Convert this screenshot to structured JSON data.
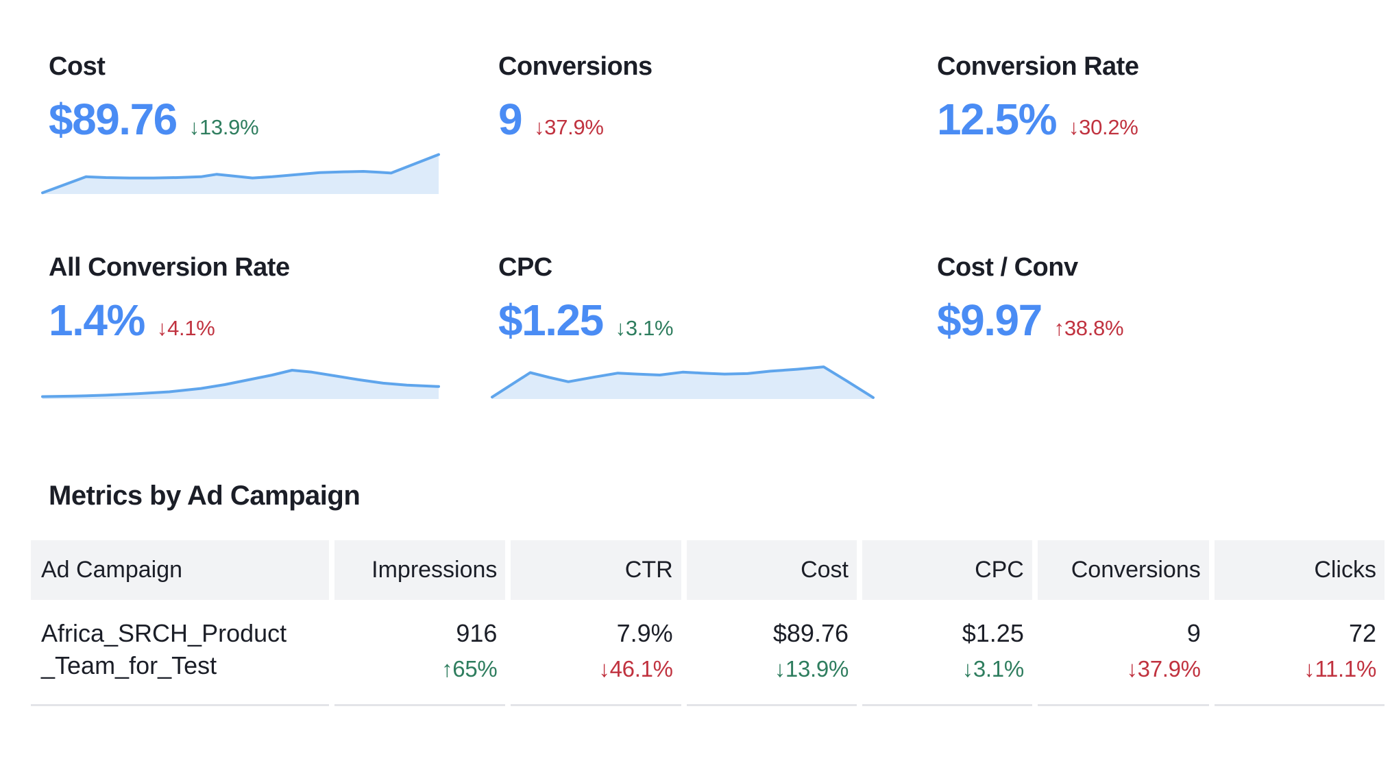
{
  "colors": {
    "accent_blue": "#4a8cf4",
    "positive_green": "#2e7d5e",
    "negative_red": "#c0323f",
    "text_dark": "#1b1e27",
    "spark_line": "#5fa5ec",
    "spark_fill": "#ddebfa",
    "table_header_bg": "#f2f3f5",
    "row_divider": "#e3e4e8"
  },
  "cards": [
    {
      "title": "Cost",
      "value": "$89.76",
      "delta": "↓13.9%",
      "delta_color": "#2e7d5e",
      "spark": "cost"
    },
    {
      "title": "Conversions",
      "value": "9",
      "delta": "↓37.9%",
      "delta_color": "#c0323f"
    },
    {
      "title": "Conversion Rate",
      "value": "12.5%",
      "delta": "↓30.2%",
      "delta_color": "#c0323f"
    },
    {
      "title": "All Conversion Rate",
      "value": "1.4%",
      "delta": "↓4.1%",
      "delta_color": "#c0323f",
      "spark": "all_conversion_rate"
    },
    {
      "title": "CPC",
      "value": "$1.25",
      "delta": "↓3.1%",
      "delta_color": "#2e7d5e",
      "spark": "cpc"
    },
    {
      "title": "Cost / Conv",
      "value": "$9.97",
      "delta": "↑38.8%",
      "delta_color": "#c0323f"
    }
  ],
  "table": {
    "heading": "Metrics by Ad Campaign",
    "columns": [
      "Ad Campaign",
      "Impressions",
      "CTR",
      "Cost",
      "CPC",
      "Conversions",
      "Clicks"
    ],
    "rows": [
      {
        "campaign_lines": [
          "Africa_SRCH_Product",
          "_Team_for_Test"
        ],
        "cells": [
          {
            "value": "916",
            "delta": "↑65%",
            "delta_color": "#2e7d5e"
          },
          {
            "value": "7.9%",
            "delta": "↓46.1%",
            "delta_color": "#c0323f"
          },
          {
            "value": "$89.76",
            "delta": "↓13.9%",
            "delta_color": "#2e7d5e"
          },
          {
            "value": "$1.25",
            "delta": "↓3.1%",
            "delta_color": "#2e7d5e"
          },
          {
            "value": "9",
            "delta": "↓37.9%",
            "delta_color": "#c0323f"
          },
          {
            "value": "72",
            "delta": "↓11.1%",
            "delta_color": "#c0323f"
          }
        ]
      }
    ]
  },
  "chart_data": [
    {
      "id": "cost",
      "type": "area",
      "title": "Cost trend sparkline",
      "xlabel": "",
      "ylabel": "",
      "axes_visible": false,
      "x_normalized": [
        0,
        11,
        16,
        22,
        28,
        34,
        40,
        44,
        48,
        53,
        58,
        64,
        70,
        76,
        81,
        85,
        88,
        100
      ],
      "y_normalized": [
        3,
        42,
        40,
        39,
        39,
        40,
        42,
        48,
        44,
        39,
        42,
        47,
        52,
        54,
        55,
        53,
        51,
        96
      ]
    },
    {
      "id": "all_conversion_rate",
      "type": "area",
      "title": "All Conversion Rate trend sparkline",
      "xlabel": "",
      "ylabel": "",
      "axes_visible": false,
      "x_normalized": [
        0,
        8,
        16,
        24,
        32,
        40,
        46,
        52,
        58,
        63,
        68,
        74,
        80,
        86,
        92,
        100
      ],
      "y_normalized": [
        5,
        6,
        8,
        11,
        15,
        22,
        30,
        40,
        50,
        60,
        56,
        48,
        40,
        33,
        29,
        26
      ]
    },
    {
      "id": "cpc",
      "type": "area",
      "title": "CPC trend sparkline",
      "xlabel": "",
      "ylabel": "",
      "axes_visible": false,
      "x_normalized": [
        0,
        10,
        15,
        20,
        27,
        33,
        38,
        44,
        50,
        55,
        61,
        67,
        73,
        80,
        87,
        93,
        100
      ],
      "y_normalized": [
        4,
        55,
        45,
        36,
        46,
        54,
        52,
        50,
        56,
        54,
        52,
        53,
        58,
        62,
        67,
        38,
        3
      ]
    }
  ]
}
